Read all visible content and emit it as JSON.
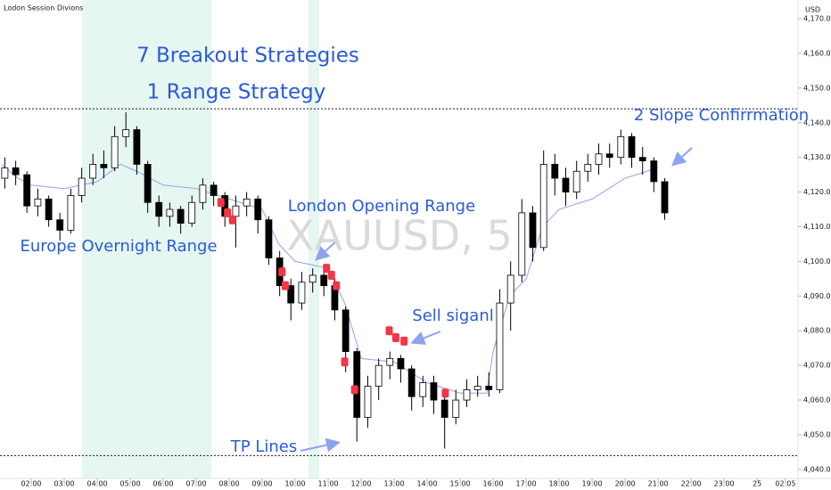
{
  "chart_data": {
    "type": "candlestick",
    "title": "Lodon Session Divions",
    "currency": "USD",
    "watermark": "XAUUSD, 5",
    "annotations": [
      "7 Breakout Strategies",
      "1 Range Strategy",
      "2 Slope Confirrmation",
      "London Opening Range",
      "Europe Overnight Range",
      "Sell siganl",
      "TP Lines"
    ],
    "up_color": "#ffffff",
    "down_color": "#000000",
    "outline_color": "#000000",
    "x": [
      1.2,
      1.53,
      1.87,
      2.2,
      2.53,
      2.87,
      3.2,
      3.53,
      3.87,
      4.2,
      4.53,
      4.87,
      5.2,
      5.53,
      5.87,
      6.2,
      6.53,
      6.87,
      7.2,
      7.53,
      7.87,
      8.2,
      8.53,
      8.87,
      9.2,
      9.53,
      9.87,
      10.2,
      10.53,
      10.87,
      11.2,
      11.53,
      11.87,
      12.2,
      12.53,
      12.87,
      13.2,
      13.53,
      13.87,
      14.2,
      14.53,
      14.87,
      15.2,
      15.53,
      15.87,
      16.2,
      16.53,
      16.87,
      17.2,
      17.53,
      17.87,
      18.2,
      18.53,
      18.87,
      19.2,
      19.53,
      19.87,
      20.2,
      20.53,
      20.87,
      21.2
    ],
    "open": [
      4124,
      4127,
      4125,
      4116,
      4118,
      4112,
      4109,
      4119,
      4124,
      4128,
      4127,
      4136,
      4138,
      4128,
      4117,
      4113,
      4115,
      4111,
      4117,
      4122,
      4119,
      4113,
      4116,
      4118,
      4112,
      4101,
      4093,
      4088,
      4094,
      4096,
      4093,
      4086,
      4074,
      4055,
      4064,
      4070,
      4072,
      4069,
      4061,
      4065,
      4060,
      4055,
      4060,
      4063,
      4064,
      4063,
      4088,
      4096,
      4114,
      4104,
      4128,
      4124,
      4120,
      4126,
      4128,
      4131,
      4130,
      4136,
      4130,
      4129,
      4123
    ],
    "high": [
      4130,
      4129,
      4126,
      4121,
      4119,
      4114,
      4121,
      4127,
      4131,
      4132,
      4139,
      4143,
      4139,
      4129,
      4119,
      4117,
      4116,
      4119,
      4124,
      4123,
      4120,
      4119,
      4120,
      4119,
      4113,
      4103,
      4095,
      4097,
      4098,
      4098,
      4095,
      4087,
      4075,
      4067,
      4072,
      4074,
      4073,
      4070,
      4067,
      4067,
      4062,
      4063,
      4066,
      4067,
      4068,
      4092,
      4100,
      4118,
      4116,
      4132,
      4131,
      4127,
      4129,
      4131,
      4134,
      4134,
      4138,
      4137,
      4133,
      4130,
      4124
    ],
    "low": [
      4121,
      4122,
      4114,
      4113,
      4110,
      4106,
      4108,
      4117,
      4122,
      4124,
      4126,
      4133,
      4125,
      4114,
      4110,
      4110,
      4108,
      4110,
      4115,
      4116,
      4110,
      4104,
      4113,
      4108,
      4099,
      4090,
      4083,
      4086,
      4091,
      4090,
      4083,
      4068,
      4048,
      4052,
      4060,
      4066,
      4065,
      4057,
      4058,
      4056,
      4046,
      4053,
      4058,
      4061,
      4061,
      4062,
      4080,
      4094,
      4100,
      4103,
      4119,
      4116,
      4118,
      4123,
      4125,
      4127,
      4128,
      4127,
      4125,
      4120,
      4112
    ],
    "close": [
      4127,
      4125,
      4116,
      4118,
      4112,
      4109,
      4119,
      4124,
      4128,
      4127,
      4136,
      4138,
      4128,
      4117,
      4113,
      4115,
      4111,
      4117,
      4122,
      4119,
      4113,
      4116,
      4118,
      4112,
      4101,
      4093,
      4088,
      4094,
      4096,
      4093,
      4086,
      4074,
      4055,
      4064,
      4070,
      4072,
      4069,
      4061,
      4065,
      4060,
      4055,
      4060,
      4063,
      4064,
      4063,
      4088,
      4096,
      4114,
      4104,
      4128,
      4124,
      4120,
      4126,
      4128,
      4131,
      4130,
      4136,
      4130,
      4129,
      4123,
      4114
    ],
    "range_line": {
      "color": "#8ea3f0",
      "x": [
        1.1,
        1.6,
        2,
        3,
        4,
        4.7,
        5.2,
        6,
        7,
        8,
        9,
        9.5,
        10,
        11,
        11.5,
        12,
        13,
        14,
        15,
        15.8,
        16,
        16.5,
        17,
        17.5,
        18,
        19,
        20,
        21
      ],
      "values": [
        4128,
        4124,
        4122,
        4121,
        4123,
        4128,
        4126,
        4122,
        4121,
        4118,
        4115,
        4105,
        4100,
        4098,
        4088,
        4072,
        4071,
        4065,
        4062,
        4062,
        4074,
        4090,
        4095,
        4110,
        4115,
        4118,
        4124,
        4127
      ]
    },
    "signals": {
      "color": "#f23645",
      "x": [
        7.75,
        7.95,
        8.1,
        9.6,
        9.7,
        10.95,
        11.1,
        11.25,
        11.5,
        11.8,
        12.85,
        13.05,
        13.3,
        14.55
      ],
      "values": [
        4117,
        4114,
        4112,
        4097,
        4093,
        4098,
        4096,
        4093,
        4071,
        4063,
        4080,
        4078,
        4077,
        4062
      ]
    },
    "sessions": [
      [
        3.54,
        7.46
      ],
      [
        10.4,
        10.73
      ]
    ],
    "session_color": "#e6f6f1",
    "hlines": [
      4144,
      4044
    ],
    "xlim": [
      1.054,
      25.24
    ],
    "ylim": [
      4037.4,
      4175.4
    ],
    "xticks": [
      {
        "value": 2,
        "label": "02:00"
      },
      {
        "value": 3,
        "label": "03:00"
      },
      {
        "value": 4,
        "label": "04:00"
      },
      {
        "value": 5,
        "label": "05:00"
      },
      {
        "value": 6,
        "label": "06:00"
      },
      {
        "value": 7,
        "label": "07:00"
      },
      {
        "value": 8,
        "label": "08:00"
      },
      {
        "value": 9,
        "label": "09:00"
      },
      {
        "value": 10,
        "label": "10:00"
      },
      {
        "value": 11,
        "label": "11:00"
      },
      {
        "value": 12,
        "label": "12:00"
      },
      {
        "value": 13,
        "label": "13:00"
      },
      {
        "value": 14,
        "label": "14:00"
      },
      {
        "value": 15,
        "label": "15:00"
      },
      {
        "value": 16,
        "label": "16:00"
      },
      {
        "value": 17,
        "label": "17:00"
      },
      {
        "value": 18,
        "label": "18:00"
      },
      {
        "value": 19,
        "label": "19:00"
      },
      {
        "value": 20,
        "label": "20:00"
      },
      {
        "value": 21,
        "label": "21:00"
      },
      {
        "value": 22,
        "label": "22:00"
      },
      {
        "value": 23,
        "label": "23:00"
      },
      {
        "value": 24,
        "label": "25"
      },
      {
        "value": 24.86,
        "label": "02:05"
      }
    ],
    "yticks": [
      {
        "value": 4040,
        "label": "4,040.00"
      },
      {
        "value": 4050,
        "label": "4,050.00"
      },
      {
        "value": 4060,
        "label": "4,060.00"
      },
      {
        "value": 4070,
        "label": "4,070.00"
      },
      {
        "value": 4080,
        "label": "4,080.00"
      },
      {
        "value": 4090,
        "label": "4,090.00"
      },
      {
        "value": 4100,
        "label": "4,100.00"
      },
      {
        "value": 4110,
        "label": "4,110.00"
      },
      {
        "value": 4120,
        "label": "4,120.00"
      },
      {
        "value": 4130,
        "label": "4,130.00"
      },
      {
        "value": 4140,
        "label": "4,140.00"
      },
      {
        "value": 4150,
        "label": "4,150.00"
      },
      {
        "value": 4160,
        "label": "4,160.00"
      },
      {
        "value": 4170,
        "label": "4,170.00"
      }
    ],
    "grid": false
  }
}
